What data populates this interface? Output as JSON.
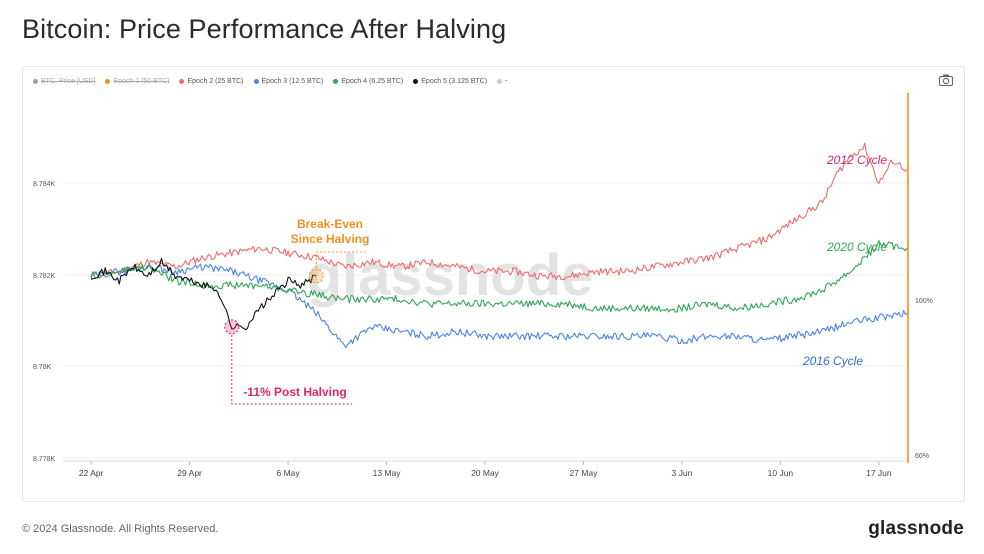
{
  "title": "Bitcoin: Price Performance After Halving",
  "footer": {
    "copyright": "© 2024 Glassnode. All Rights Reserved.",
    "brand": "glassnode"
  },
  "watermark": "glassnode",
  "colors": {
    "epoch2": "#ef6b6b",
    "epoch3": "#4a86e8",
    "epoch4": "#2fa84f",
    "epoch5": "#111111",
    "price": "#9e9e9e",
    "epoch1": "#f0901c",
    "breakeven": "#f0901c",
    "drawdown": "#e0246b",
    "marker": "#f0901c"
  },
  "legend": [
    {
      "label": "BTC: Price [USD]",
      "color": "#9e9e9e",
      "enabled": false
    },
    {
      "label": "Epoch 1 (50 BTC)",
      "color": "#f0901c",
      "enabled": false
    },
    {
      "label": "Epoch 2 (25 BTC)",
      "color": "#ef6b6b",
      "enabled": true
    },
    {
      "label": "Epoch 3 (12.5 BTC)",
      "color": "#4a86e8",
      "enabled": true
    },
    {
      "label": "Epoch 4 (6.25 BTC)",
      "color": "#2fa84f",
      "enabled": true
    },
    {
      "label": "Epoch 5 (3.125 BTC)",
      "color": "#111111",
      "enabled": true
    },
    {
      "label": "-",
      "color": "#cccccc",
      "enabled": true
    }
  ],
  "chart_data": {
    "type": "line",
    "title": "Bitcoin: Price Performance After Halving",
    "x_ticks": [
      "22 Apr",
      "29 Apr",
      "6 May",
      "13 May",
      "20 May",
      "27 May",
      "3 Jun",
      "10 Jun",
      "17 Jun"
    ],
    "y_left_ticks": [
      "8.784K",
      "8.782K",
      "8.78K",
      "8.778K"
    ],
    "y_right_ticks": [
      "100%",
      "60%"
    ],
    "x_range_days": [
      -2,
      58
    ],
    "y_range_pct": [
      60,
      140
    ],
    "grid": true,
    "legend_position": "top",
    "annotations": [
      {
        "text": "2012 Cycle",
        "series": "Epoch 2 (25 BTC)"
      },
      {
        "text": "2020 Cycle",
        "series": "Epoch 4 (6.25 BTC)"
      },
      {
        "text": "2016 Cycle",
        "series": "Epoch 3 (12.5 BTC)"
      },
      {
        "text": "Break-Even\nSince Halving",
        "series": "Epoch 5 (3.125 BTC)"
      },
      {
        "text": "-11% Post Halving",
        "series": "Epoch 5 (3.125 BTC)"
      }
    ],
    "series": [
      {
        "name": "Epoch 2 (25 BTC)",
        "x": [
          0,
          2,
          4,
          6,
          8,
          10,
          12,
          14,
          16,
          18,
          20,
          22,
          24,
          26,
          28,
          30,
          32,
          34,
          36,
          38,
          40,
          42,
          44,
          46,
          48,
          50,
          52,
          53,
          54,
          55,
          56,
          57,
          58
        ],
        "y": [
          100,
          101,
          103,
          102,
          104,
          105,
          106,
          105,
          104,
          102,
          103,
          102,
          103,
          102,
          101,
          101,
          100,
          100,
          101,
          101,
          102,
          103,
          104,
          106,
          108,
          112,
          116,
          122,
          126,
          128,
          120,
          125,
          123
        ]
      },
      {
        "name": "Epoch 3 (12.5 BTC)",
        "x": [
          0,
          2,
          4,
          6,
          8,
          10,
          12,
          14,
          16,
          18,
          20,
          22,
          24,
          26,
          28,
          30,
          32,
          34,
          36,
          38,
          40,
          42,
          44,
          46,
          48,
          50,
          52,
          54,
          56,
          58
        ],
        "y": [
          100,
          101,
          102,
          101,
          102,
          101,
          99,
          97,
          92,
          85,
          89,
          88,
          87,
          88,
          87,
          87,
          87,
          87,
          87,
          87,
          87,
          86,
          87,
          87,
          86,
          87,
          88,
          90,
          91,
          92
        ]
      },
      {
        "name": "Epoch 4 (6.25 BTC)",
        "x": [
          0,
          2,
          4,
          6,
          8,
          10,
          12,
          14,
          16,
          18,
          20,
          22,
          24,
          26,
          28,
          30,
          32,
          34,
          36,
          38,
          40,
          42,
          44,
          46,
          48,
          50,
          52,
          54,
          56,
          58
        ],
        "y": [
          100,
          101,
          102,
          99,
          98,
          98,
          98,
          97,
          96,
          95,
          95,
          95,
          94,
          94,
          94,
          94,
          94,
          94,
          93,
          93,
          93,
          93,
          94,
          93,
          94,
          95,
          97,
          101,
          107,
          106
        ]
      },
      {
        "name": "Epoch 5 (3.125 BTC)",
        "x": [
          0,
          1,
          2,
          3,
          4,
          5,
          6,
          7,
          8,
          9,
          10,
          11,
          12,
          13,
          14,
          15,
          16
        ],
        "y": [
          100,
          101,
          99,
          102,
          100,
          103,
          100,
          99,
          98,
          97,
          89,
          89,
          93,
          96,
          99,
          98,
          100
        ]
      }
    ]
  }
}
